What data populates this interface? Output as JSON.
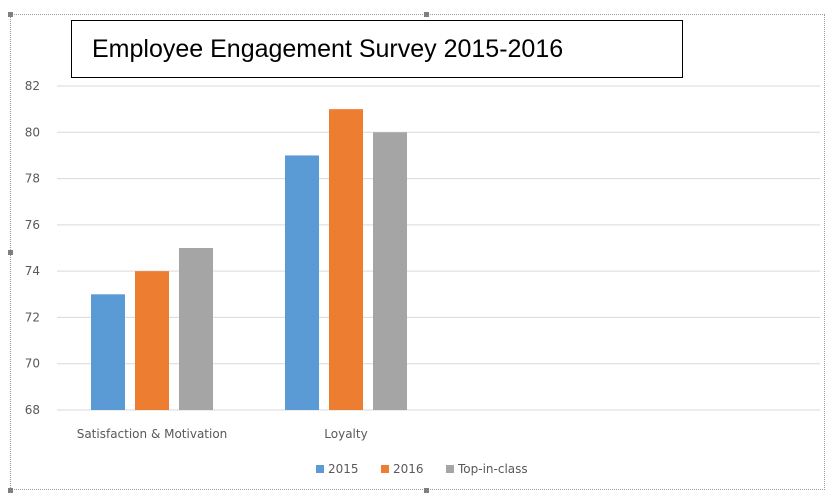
{
  "chart_data": {
    "type": "bar",
    "title": "Employee Engagement Survey 2015-2016",
    "categories": [
      "Satisfaction & Motivation",
      "Loyalty"
    ],
    "series": [
      {
        "name": "2015",
        "values": [
          73,
          79
        ]
      },
      {
        "name": "2016",
        "values": [
          74,
          81
        ]
      },
      {
        "name": "Top-in-class",
        "values": [
          75,
          80
        ]
      }
    ],
    "ylim": [
      68,
      82
    ],
    "yticks": [
      68,
      70,
      72,
      74,
      76,
      78,
      80,
      82
    ],
    "grid": true,
    "legend_position": "bottom",
    "colors": [
      "#5b9bd5",
      "#ed7d31",
      "#a5a5a5"
    ]
  }
}
